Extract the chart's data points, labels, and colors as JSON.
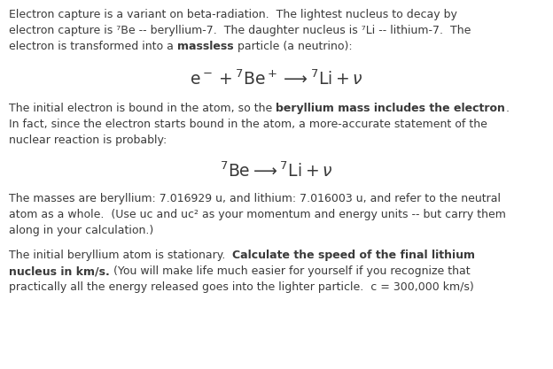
{
  "bg_color": "#ffffff",
  "text_color": "#3a3a3a",
  "fig_width": 6.24,
  "fig_height": 4.17,
  "dpi": 100,
  "font_size": 9.0,
  "eq1": "$\\mathrm{e}^- + {}^7\\mathrm{Be}^+ \\longrightarrow {}^7\\mathrm{Li} + \\nu$",
  "eq2": "${}^7\\mathrm{Be} \\longrightarrow {}^7\\mathrm{Li} + \\nu$",
  "eq_fontsize": 13.5
}
